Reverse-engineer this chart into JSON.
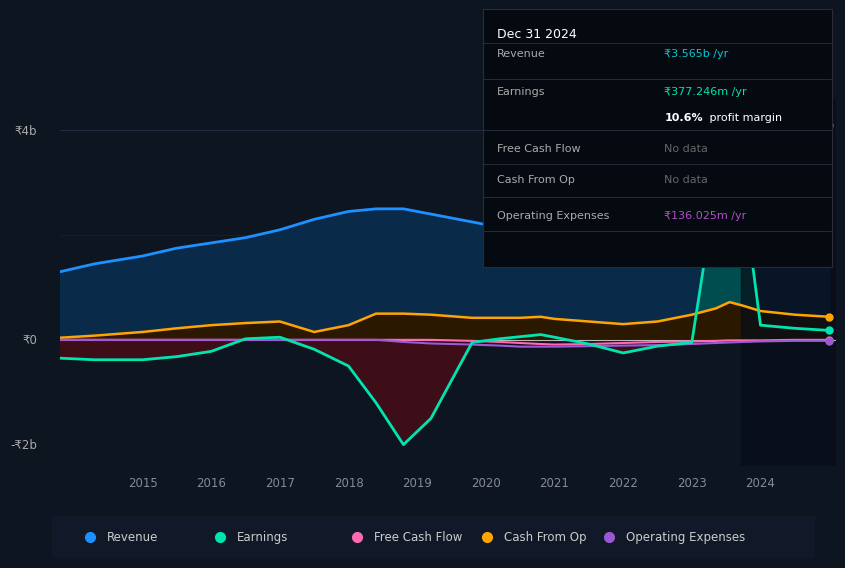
{
  "bg_color": "#0d1520",
  "chart_bg": "#0d1520",
  "title": "Dec 31 2024",
  "ylabel_4b": "₹4b",
  "ylabel_0": "₹0",
  "ylabel_m2b": "-₹2b",
  "years": [
    2013.8,
    2014.3,
    2015.0,
    2015.5,
    2016.0,
    2016.5,
    2017.0,
    2017.5,
    2018.0,
    2018.4,
    2018.8,
    2019.2,
    2019.8,
    2020.2,
    2020.5,
    2020.8,
    2021.0,
    2021.5,
    2022.0,
    2022.5,
    2023.0,
    2023.35,
    2023.55,
    2023.75,
    2024.0,
    2024.5,
    2025.0
  ],
  "revenue": [
    1.3,
    1.45,
    1.6,
    1.75,
    1.85,
    1.95,
    2.1,
    2.3,
    2.45,
    2.5,
    2.5,
    2.4,
    2.25,
    2.15,
    2.0,
    1.95,
    1.85,
    1.9,
    2.1,
    2.6,
    3.2,
    3.55,
    3.6,
    3.55,
    3.3,
    3.5,
    4.1
  ],
  "earnings": [
    -0.35,
    -0.38,
    -0.38,
    -0.32,
    -0.22,
    0.02,
    0.05,
    -0.18,
    -0.5,
    -1.2,
    -2.0,
    -1.5,
    -0.05,
    0.02,
    0.06,
    0.1,
    0.05,
    -0.08,
    -0.25,
    -0.12,
    -0.05,
    2.9,
    3.1,
    2.8,
    0.28,
    0.22,
    0.18
  ],
  "free_cash_flow": [
    0.0,
    0.0,
    0.0,
    0.0,
    0.0,
    0.0,
    0.0,
    0.0,
    0.0,
    0.0,
    0.0,
    0.0,
    -0.02,
    -0.04,
    -0.06,
    -0.08,
    -0.09,
    -0.08,
    -0.06,
    -0.04,
    -0.03,
    -0.02,
    -0.01,
    -0.01,
    -0.01,
    0.0,
    0.0
  ],
  "cash_from_op": [
    0.04,
    0.08,
    0.15,
    0.22,
    0.28,
    0.32,
    0.35,
    0.15,
    0.28,
    0.5,
    0.5,
    0.48,
    0.42,
    0.42,
    0.42,
    0.44,
    0.4,
    0.35,
    0.3,
    0.35,
    0.48,
    0.6,
    0.72,
    0.65,
    0.55,
    0.48,
    0.44
  ],
  "op_expenses": [
    0.0,
    0.0,
    0.0,
    0.0,
    0.0,
    0.0,
    0.0,
    0.0,
    0.0,
    0.0,
    -0.04,
    -0.07,
    -0.09,
    -0.11,
    -0.13,
    -0.13,
    -0.13,
    -0.12,
    -0.11,
    -0.1,
    -0.08,
    -0.06,
    -0.05,
    -0.04,
    -0.03,
    -0.02,
    -0.02
  ],
  "revenue_color": "#1e90ff",
  "earnings_color": "#00e5b0",
  "free_cash_flow_color": "#ff69b4",
  "cash_from_op_color": "#ffa500",
  "op_expenses_color": "#9b59d4",
  "revenue_fill": "#0a2a4a",
  "earnings_fill_pos": "#004d50",
  "earnings_fill_neg": "#3d0d18",
  "cash_from_op_fill": "#2a1800",
  "free_cf_fill": "#3a0a1a",
  "op_fill": "#1e0a2a",
  "x_ticks": [
    2015,
    2016,
    2017,
    2018,
    2019,
    2020,
    2021,
    2022,
    2023,
    2024
  ],
  "ylim": [
    -2.4,
    4.6
  ],
  "info_box_title": "Dec 31 2024",
  "info_rows": [
    {
      "label": "Revenue",
      "value": "₹3.565b /yr",
      "vcolor": "#00c8d4",
      "sub": ""
    },
    {
      "label": "Earnings",
      "value": "₹377.246m /yr",
      "vcolor": "#00e5b0",
      "sub": "10.6% profit margin"
    },
    {
      "label": "Free Cash Flow",
      "value": "No data",
      "vcolor": "#666666",
      "sub": ""
    },
    {
      "label": "Cash From Op",
      "value": "No data",
      "vcolor": "#666666",
      "sub": ""
    },
    {
      "label": "Operating Expenses",
      "value": "₹136.025m /yr",
      "vcolor": "#b050c8",
      "sub": ""
    }
  ],
  "legend_items": [
    {
      "label": "Revenue",
      "color": "#1e90ff"
    },
    {
      "label": "Earnings",
      "color": "#00e5b0"
    },
    {
      "label": "Free Cash Flow",
      "color": "#ff69b4"
    },
    {
      "label": "Cash From Op",
      "color": "#ffa500"
    },
    {
      "label": "Operating Expenses",
      "color": "#9b59d4"
    }
  ],
  "dark_overlay_start": 2023.72
}
